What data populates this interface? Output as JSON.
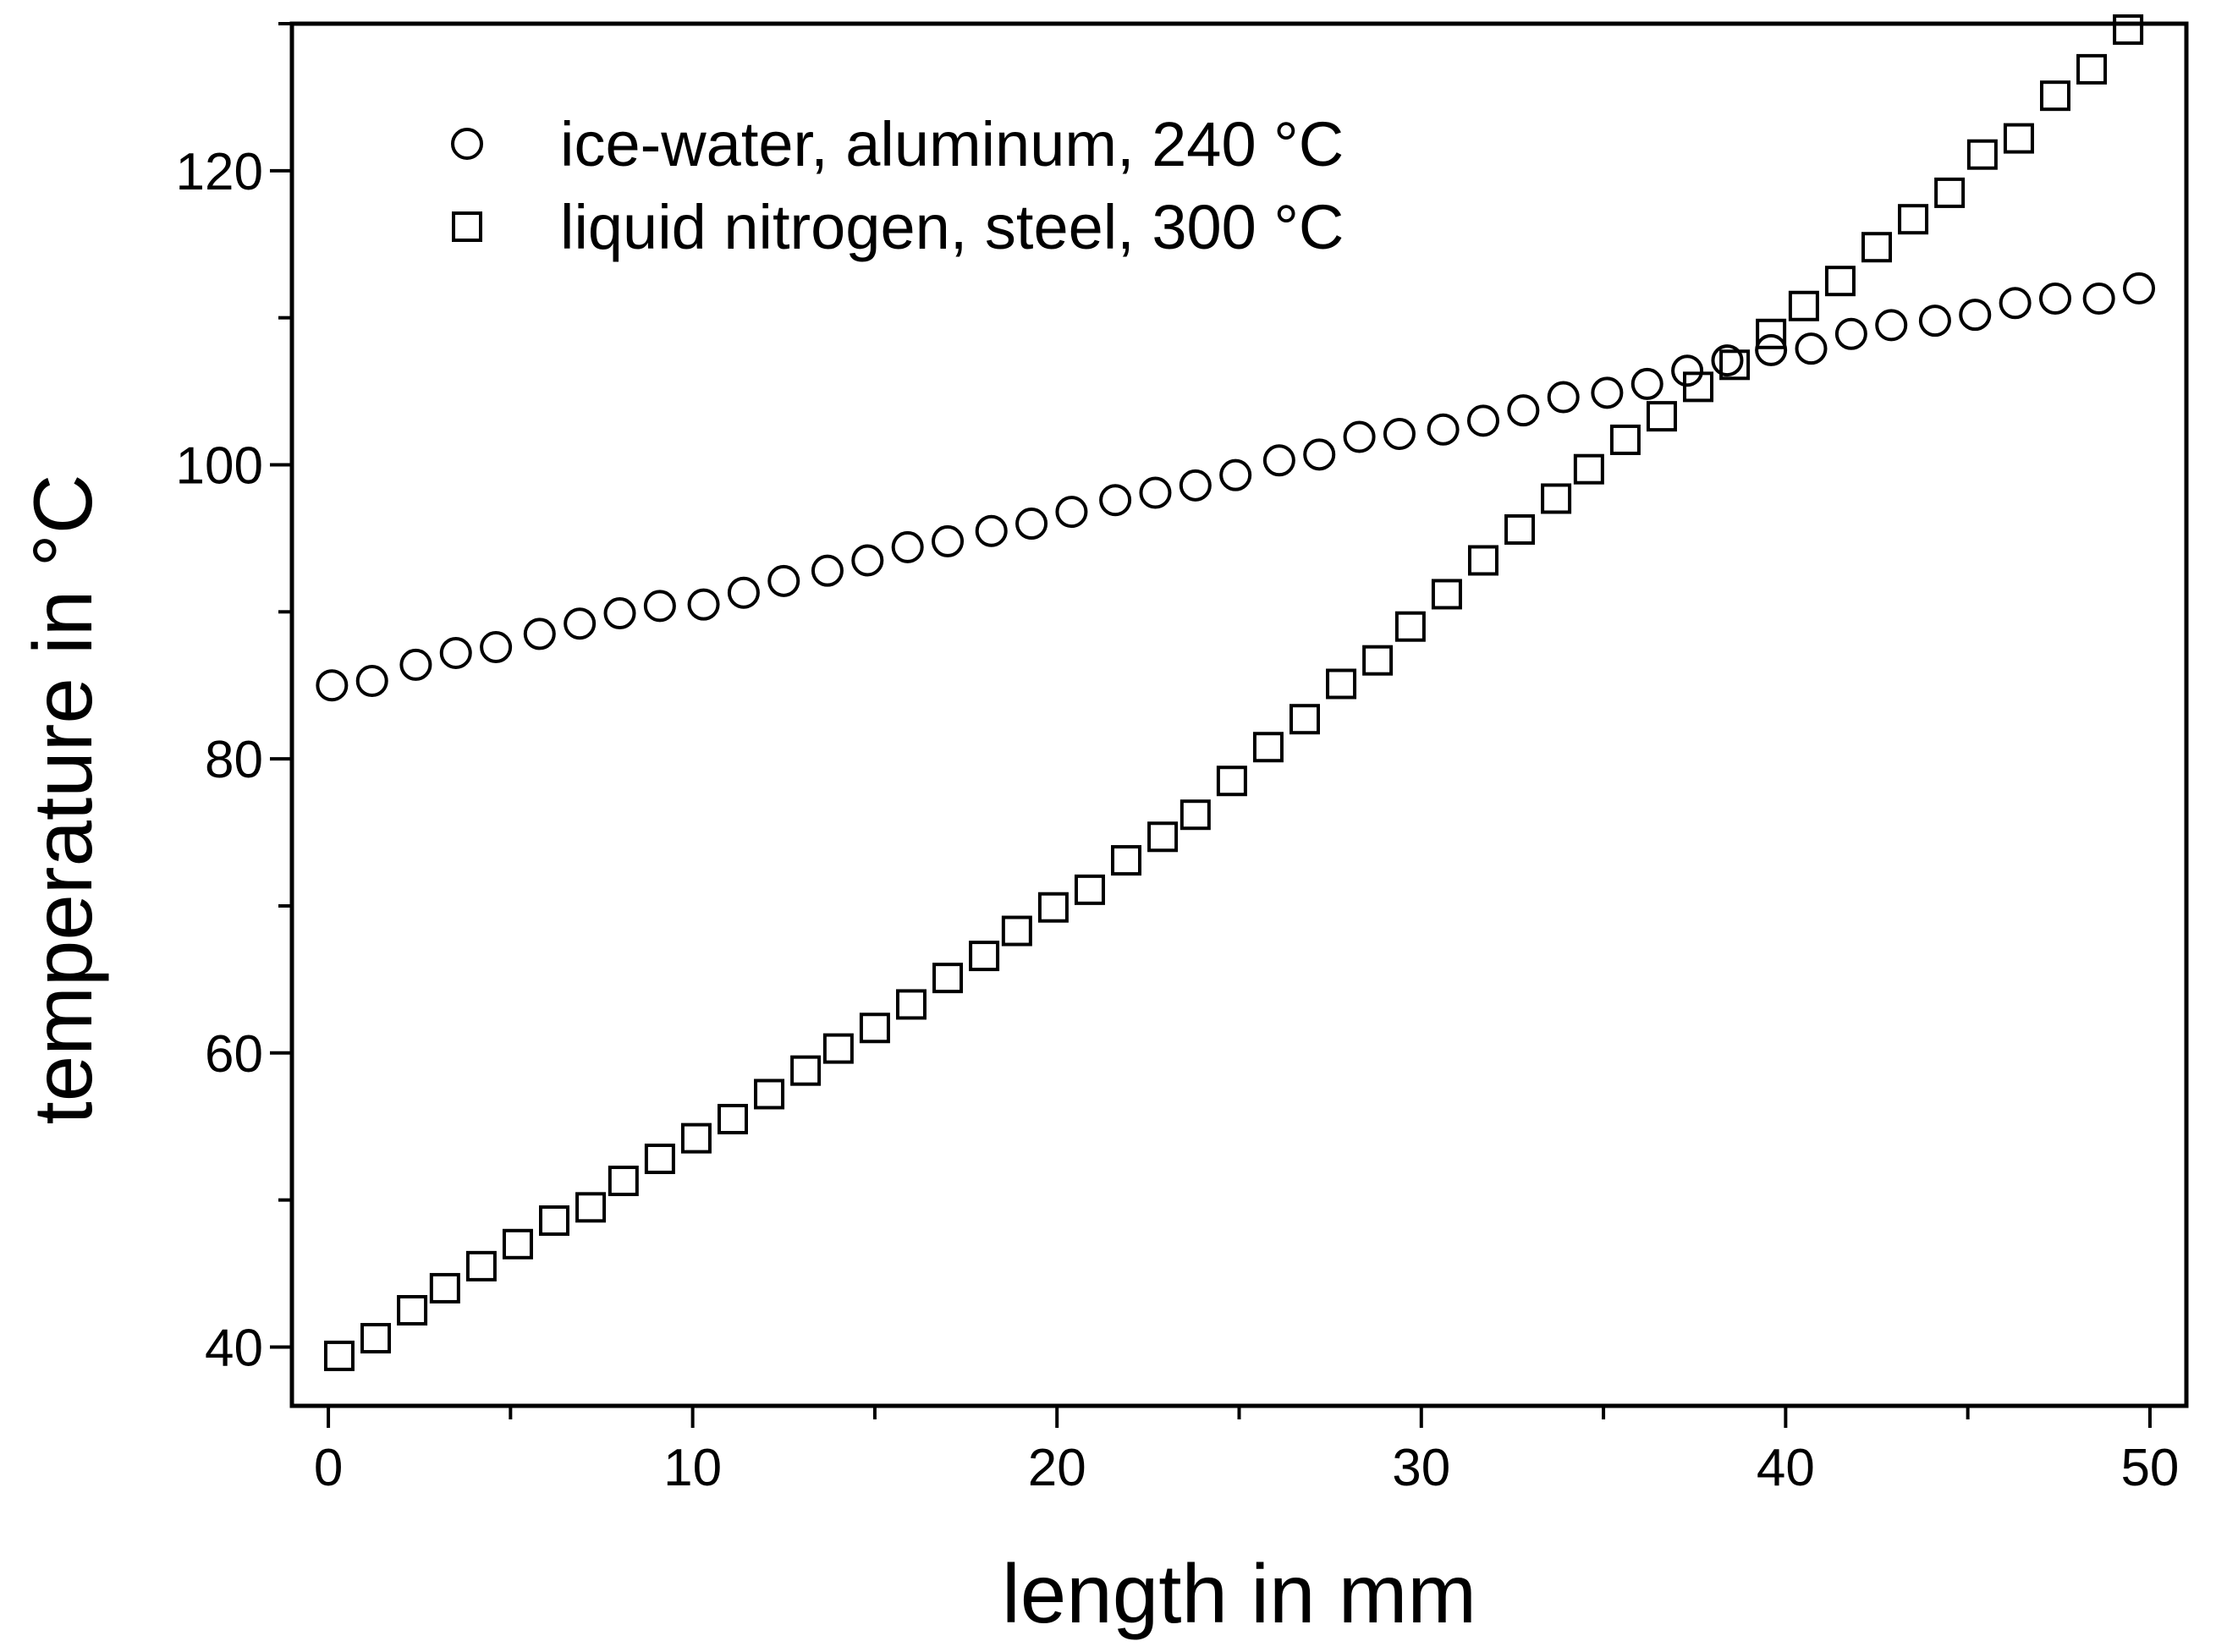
{
  "chart_data": {
    "type": "scatter",
    "xlabel": "length in mm",
    "ylabel": "temperature in °C",
    "xlim": [
      -1,
      51
    ],
    "ylim": [
      36,
      130
    ],
    "x_ticks": [
      0,
      10,
      20,
      30,
      40,
      50
    ],
    "y_ticks": [
      40,
      60,
      80,
      100,
      120
    ],
    "grid": false,
    "legend_position": "top-left",
    "series": [
      {
        "name": "ice-water, aluminum, 240 °C",
        "marker": "circle",
        "color": "#000000",
        "x": [
          0.1,
          1.2,
          2.4,
          3.5,
          4.6,
          5.8,
          6.9,
          8.0,
          9.1,
          10.3,
          11.4,
          12.5,
          13.7,
          14.8,
          15.9,
          17.0,
          18.2,
          19.3,
          20.4,
          21.6,
          22.7,
          23.8,
          24.9,
          26.1,
          27.2,
          28.3,
          29.4,
          30.6,
          31.7,
          32.8,
          33.9,
          35.1,
          36.2,
          37.3,
          38.4,
          39.6,
          40.7,
          41.8,
          42.9,
          44.1,
          45.2,
          46.3,
          47.4,
          48.6,
          49.7
        ],
        "y": [
          85.0,
          85.3,
          86.4,
          87.2,
          87.6,
          88.5,
          89.2,
          89.9,
          90.4,
          90.5,
          91.3,
          92.1,
          92.8,
          93.5,
          94.4,
          94.8,
          95.5,
          96.0,
          96.8,
          97.6,
          98.1,
          98.6,
          99.3,
          100.3,
          100.7,
          101.9,
          102.1,
          102.4,
          103.0,
          103.7,
          104.6,
          104.9,
          105.5,
          106.4,
          107.1,
          107.8,
          107.9,
          108.9,
          109.5,
          109.8,
          110.2,
          111.0,
          111.3,
          111.3,
          112.0
        ]
      },
      {
        "name": "liquid nitrogen, steel, 300 °C",
        "marker": "square",
        "color": "#000000",
        "x": [
          0.3,
          1.3,
          2.3,
          3.2,
          4.2,
          5.2,
          6.2,
          7.2,
          8.1,
          9.1,
          10.1,
          11.1,
          12.1,
          13.1,
          14.0,
          15.0,
          16.0,
          17.0,
          18.0,
          18.9,
          19.9,
          20.9,
          21.9,
          22.9,
          23.8,
          24.8,
          25.8,
          26.8,
          27.8,
          28.8,
          29.7,
          30.7,
          31.7,
          32.7,
          33.7,
          34.6,
          35.6,
          36.6,
          37.6,
          38.6,
          39.6,
          40.5,
          41.5,
          42.5,
          43.5,
          44.5,
          45.4,
          46.4,
          47.4,
          48.4,
          49.4
        ],
        "y": [
          39.4,
          40.6,
          42.5,
          44.0,
          45.5,
          47.0,
          48.6,
          49.5,
          51.3,
          52.8,
          54.2,
          55.5,
          57.2,
          58.8,
          60.3,
          61.7,
          63.3,
          65.1,
          66.6,
          68.3,
          69.9,
          71.1,
          73.1,
          74.7,
          76.2,
          78.5,
          80.8,
          82.7,
          85.1,
          86.7,
          89.0,
          91.2,
          93.5,
          95.6,
          97.7,
          99.7,
          101.7,
          103.3,
          105.3,
          106.8,
          108.9,
          110.8,
          112.5,
          114.8,
          116.7,
          118.5,
          121.1,
          122.2,
          125.1,
          126.9,
          129.6
        ]
      }
    ]
  }
}
